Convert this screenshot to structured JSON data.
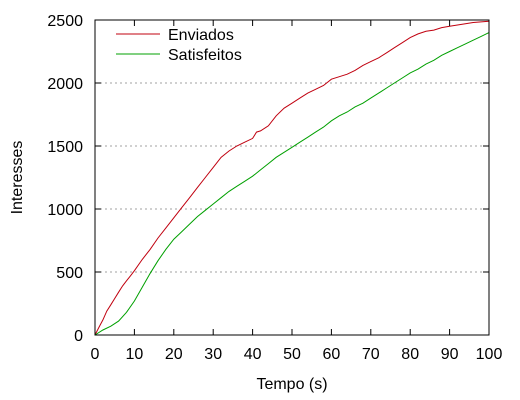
{
  "chart_data": {
    "type": "line",
    "title": "",
    "xlabel": "Tempo (s)",
    "ylabel": "Interesses",
    "xlim": [
      0,
      100
    ],
    "ylim": [
      0,
      2500
    ],
    "xticks": [
      0,
      10,
      20,
      30,
      40,
      50,
      60,
      70,
      80,
      90,
      100
    ],
    "yticks": [
      0,
      500,
      1000,
      1500,
      2000,
      2500
    ],
    "grid": "horizontal-dotted",
    "legend_position": "top-left",
    "series": [
      {
        "name": "Enviados",
        "color": "#c0000f",
        "x": [
          0,
          1,
          2,
          3,
          4,
          5,
          6,
          7,
          8,
          9,
          10,
          12,
          14,
          16,
          18,
          20,
          22,
          24,
          26,
          28,
          30,
          32,
          34,
          36,
          38,
          40,
          41,
          42,
          44,
          46,
          48,
          50,
          52,
          54,
          56,
          58,
          60,
          62,
          64,
          66,
          68,
          70,
          72,
          74,
          76,
          78,
          80,
          82,
          84,
          86,
          88,
          90,
          92,
          94,
          96,
          98,
          100
        ],
        "y": [
          0,
          60,
          120,
          190,
          240,
          290,
          340,
          390,
          430,
          470,
          510,
          600,
          680,
          770,
          850,
          930,
          1010,
          1090,
          1170,
          1250,
          1330,
          1410,
          1460,
          1500,
          1530,
          1560,
          1610,
          1620,
          1660,
          1740,
          1800,
          1840,
          1880,
          1920,
          1950,
          1980,
          2030,
          2050,
          2070,
          2100,
          2140,
          2170,
          2200,
          2240,
          2280,
          2320,
          2360,
          2390,
          2410,
          2420,
          2440,
          2450,
          2460,
          2470,
          2480,
          2485,
          2490
        ]
      },
      {
        "name": "Satisfeitos",
        "color": "#00a000",
        "x": [
          0,
          2,
          4,
          6,
          8,
          10,
          12,
          14,
          16,
          18,
          20,
          22,
          24,
          26,
          28,
          30,
          32,
          34,
          36,
          38,
          40,
          42,
          44,
          46,
          48,
          50,
          52,
          54,
          56,
          58,
          60,
          62,
          64,
          66,
          68,
          70,
          72,
          74,
          76,
          78,
          80,
          82,
          84,
          86,
          88,
          90,
          92,
          94,
          96,
          98,
          100
        ],
        "y": [
          0,
          40,
          70,
          110,
          180,
          270,
          380,
          490,
          590,
          680,
          760,
          820,
          880,
          940,
          990,
          1040,
          1090,
          1140,
          1180,
          1220,
          1260,
          1310,
          1360,
          1410,
          1450,
          1490,
          1530,
          1570,
          1610,
          1650,
          1700,
          1740,
          1770,
          1810,
          1840,
          1880,
          1920,
          1960,
          2000,
          2040,
          2080,
          2110,
          2150,
          2180,
          2220,
          2250,
          2280,
          2310,
          2340,
          2370,
          2400
        ]
      }
    ]
  }
}
